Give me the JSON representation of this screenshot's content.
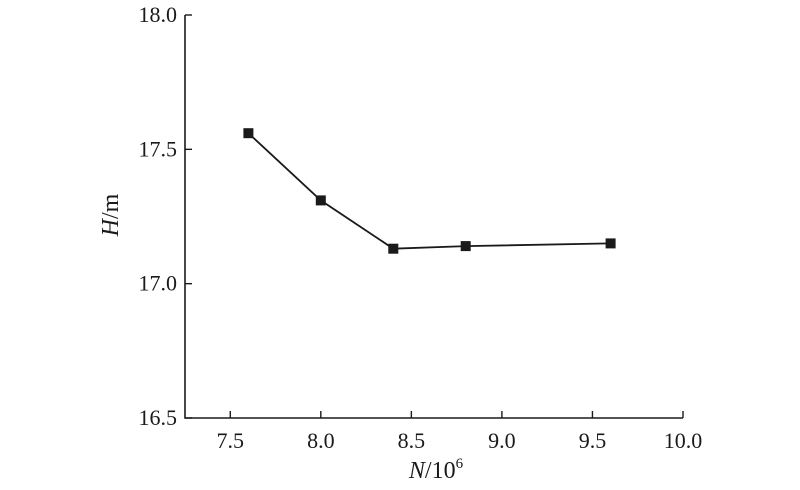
{
  "chart_data": {
    "type": "line",
    "title": "",
    "xlabel": {
      "var": "N",
      "rest": "/10",
      "sup": "6"
    },
    "ylabel": {
      "var": "H",
      "rest": "/m"
    },
    "xlim": [
      7.25,
      10.0
    ],
    "ylim": [
      16.5,
      18.0
    ],
    "xticks": [
      "7.5",
      "8.0",
      "8.5",
      "9.0",
      "9.5",
      "10.0"
    ],
    "yticks": [
      "16.5",
      "17.0",
      "17.5",
      "18.0"
    ],
    "grid": false,
    "marker": "square",
    "color": "#1a1a1a",
    "series": [
      {
        "x": [
          7.6,
          8.0,
          8.4,
          8.8,
          9.6
        ],
        "y": [
          17.56,
          17.31,
          17.13,
          17.14,
          17.15
        ]
      }
    ]
  }
}
